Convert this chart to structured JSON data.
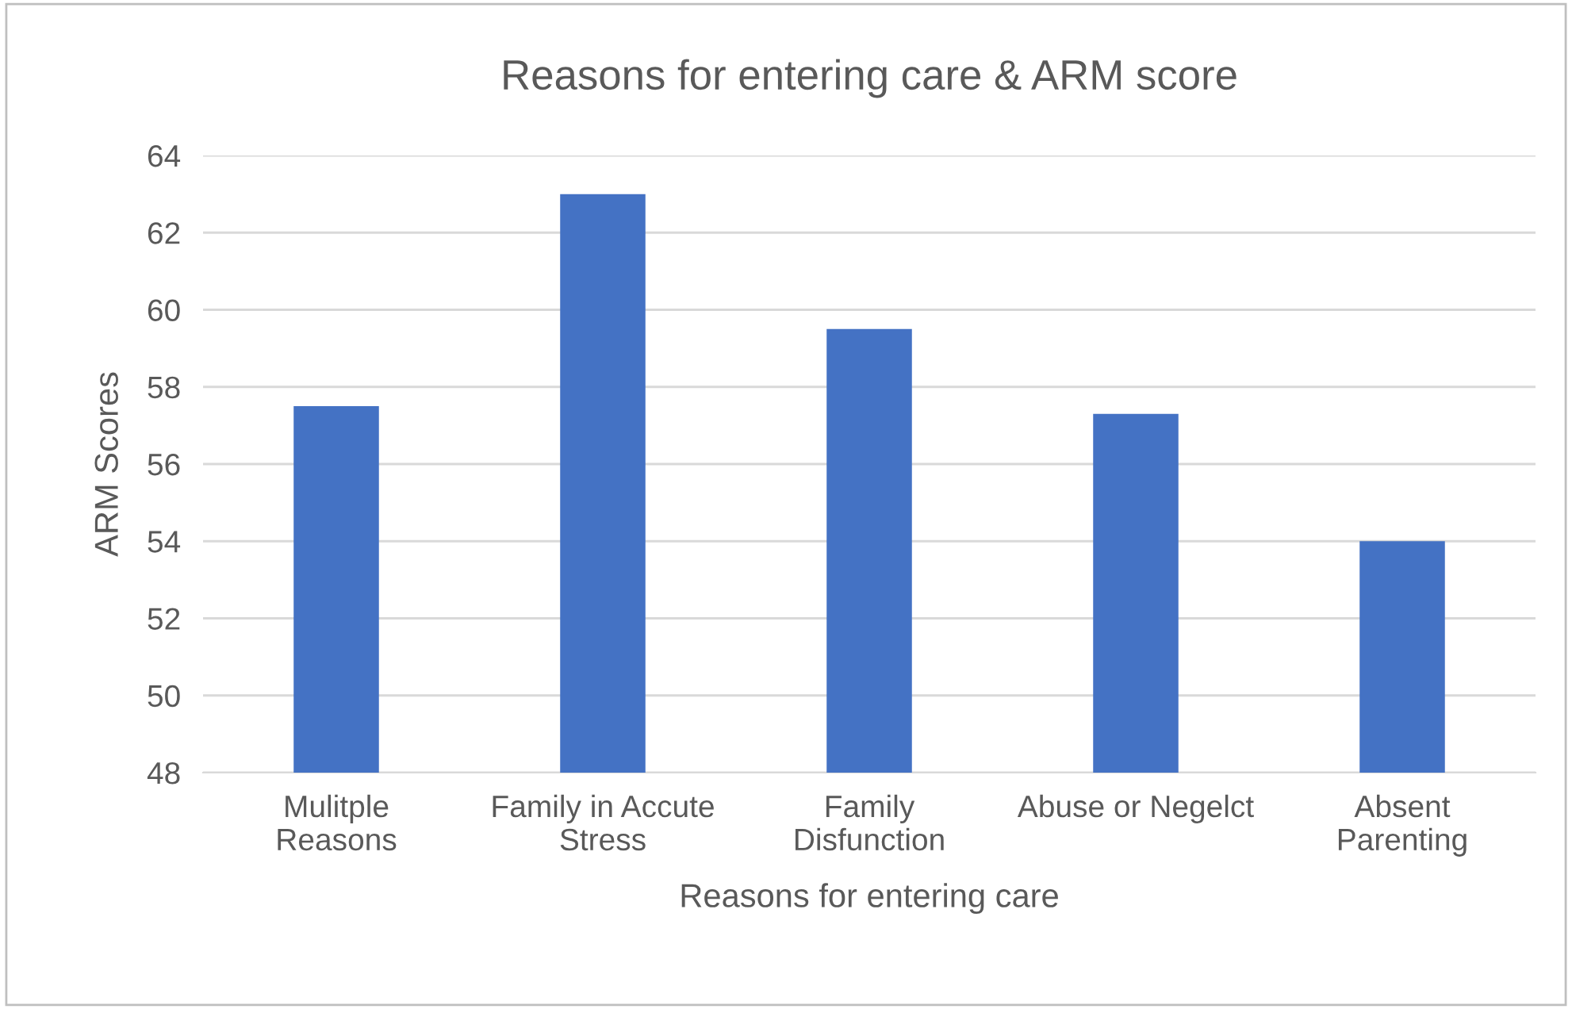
{
  "chart_data": {
    "type": "bar",
    "title": "Reasons for entering care & ARM score",
    "xlabel": "Reasons for entering care",
    "ylabel": "ARM Scores",
    "categories": [
      "Mulitple\nReasons",
      "Family in Accute\nStress",
      "Family\nDisfunction",
      "Abuse or Negelct",
      "Absent\nParenting"
    ],
    "values": [
      57.5,
      63,
      59.5,
      57.3,
      54
    ],
    "color": "#4472c4",
    "ylim": [
      48,
      64
    ],
    "yticks": [
      48,
      50,
      52,
      54,
      56,
      58,
      60,
      62,
      64
    ],
    "grid": "y"
  }
}
